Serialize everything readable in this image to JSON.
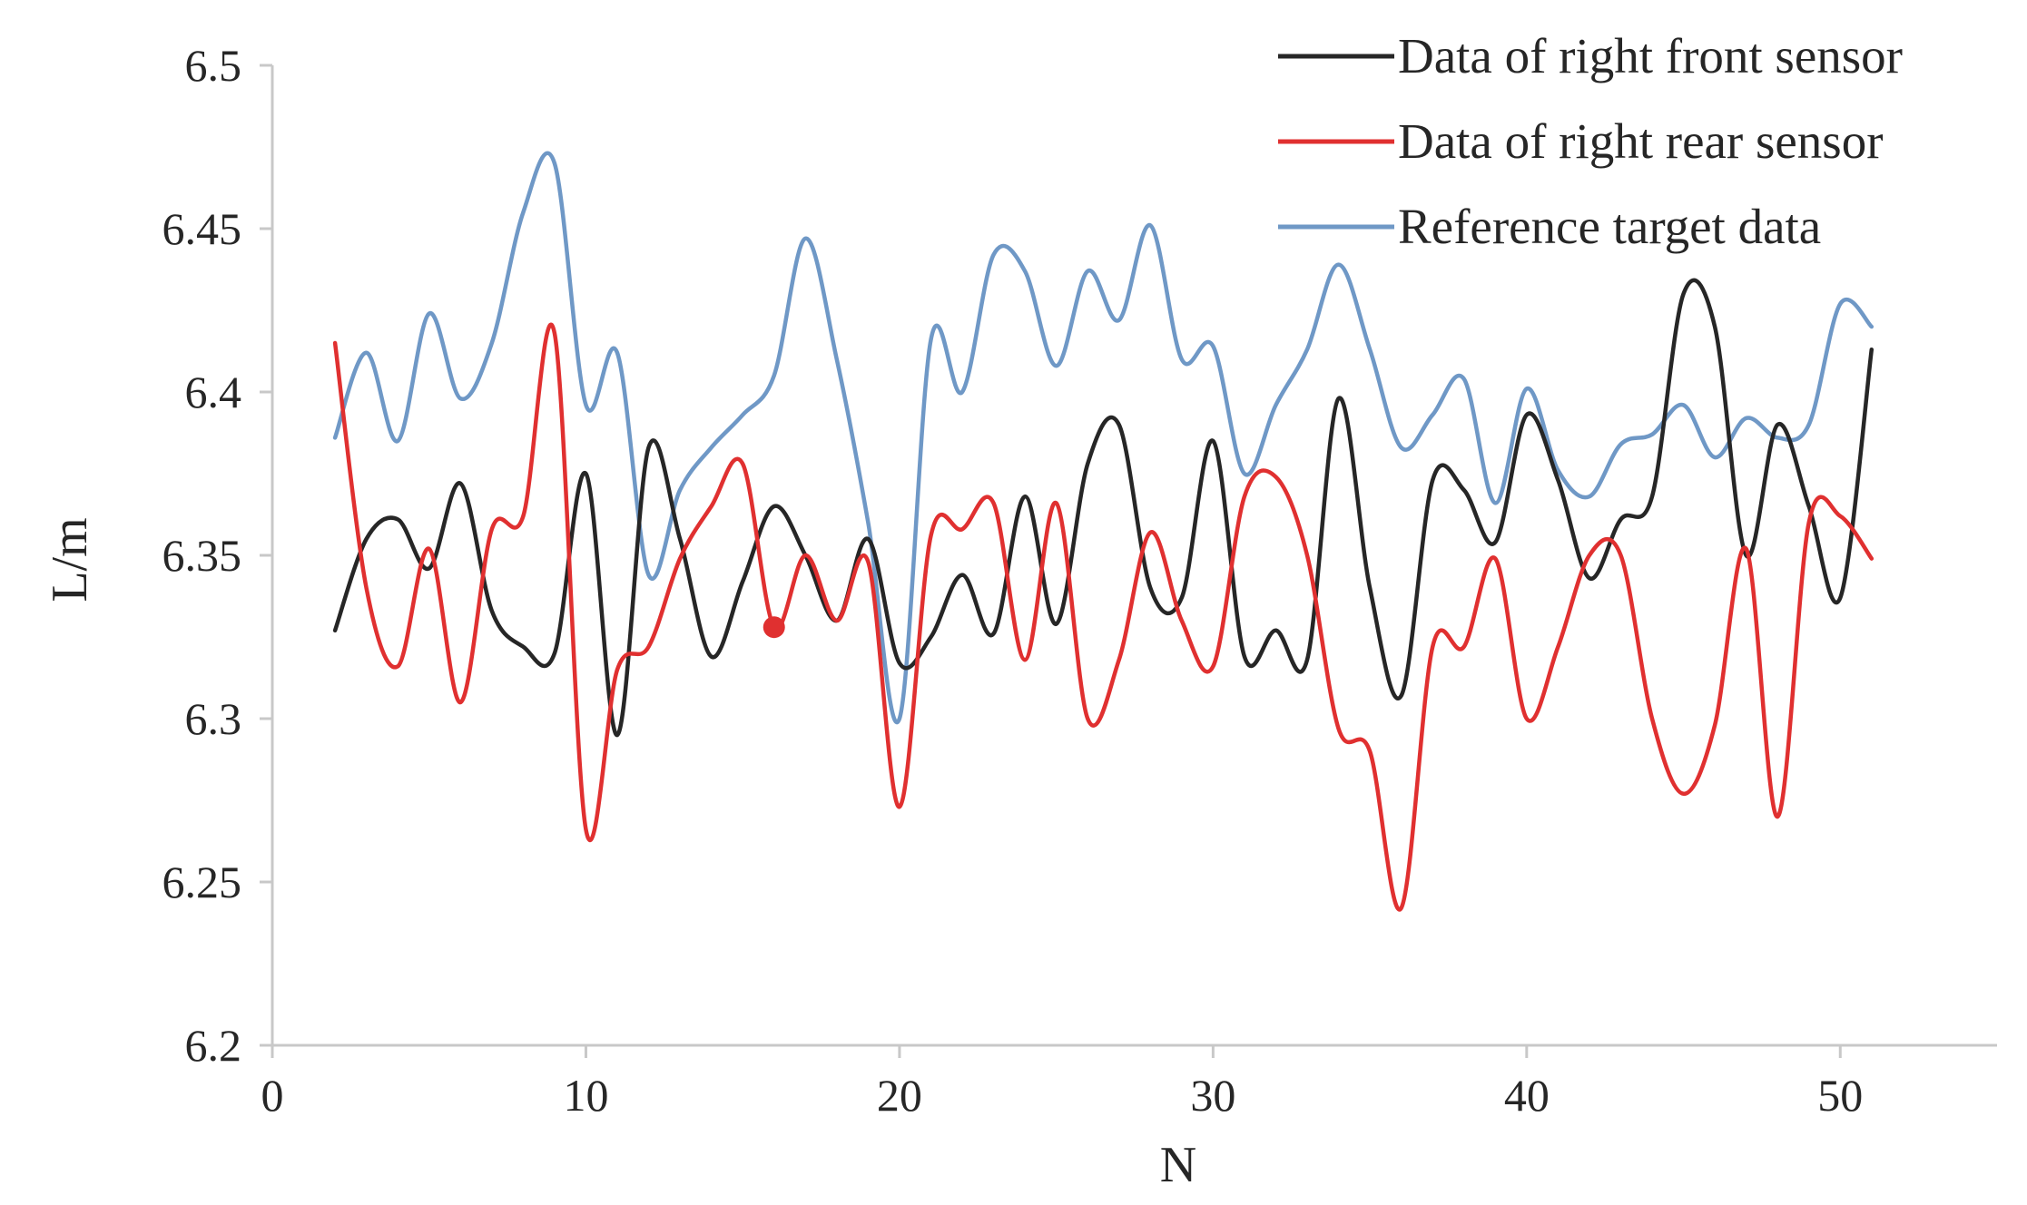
{
  "chart_data": {
    "type": "line",
    "title": "",
    "xlabel": "N",
    "ylabel": "L/m",
    "xlim": [
      0,
      55
    ],
    "ylim": [
      6.2,
      6.5
    ],
    "xticks": [
      0,
      10,
      20,
      30,
      40,
      50
    ],
    "xtick_labels": [
      "0",
      "10",
      "20",
      "30",
      "40",
      "50"
    ],
    "yticks": [
      6.2,
      6.25,
      6.3,
      6.35,
      6.4,
      6.45,
      6.5
    ],
    "ytick_labels": [
      "6.2",
      "6.25",
      "6.3",
      "6.35",
      "6.4",
      "6.45",
      "6.5"
    ],
    "grid": false,
    "legend_position": "top-right",
    "x": [
      2,
      3,
      4,
      5,
      6,
      7,
      8,
      9,
      10,
      11,
      12,
      13,
      14,
      15,
      16,
      17,
      18,
      19,
      20,
      21,
      22,
      23,
      24,
      25,
      26,
      27,
      28,
      29,
      30,
      31,
      32,
      33,
      34,
      35,
      36,
      37,
      38,
      39,
      40,
      41,
      42,
      43,
      44,
      45,
      46,
      47,
      48,
      49,
      50,
      51
    ],
    "series": [
      {
        "name": "Data of right front sensor",
        "color": "#262626",
        "values": [
          6.327,
          6.355,
          6.361,
          6.346,
          6.372,
          6.333,
          6.322,
          6.32,
          6.375,
          6.295,
          6.383,
          6.355,
          6.319,
          6.342,
          6.365,
          6.35,
          6.33,
          6.355,
          6.317,
          6.325,
          6.344,
          6.326,
          6.368,
          6.329,
          6.378,
          6.39,
          6.34,
          6.337,
          6.385,
          6.319,
          6.327,
          6.318,
          6.398,
          6.34,
          6.307,
          6.373,
          6.37,
          6.354,
          6.393,
          6.373,
          6.343,
          6.361,
          6.368,
          6.43,
          6.42,
          6.35,
          6.39,
          6.365,
          6.337,
          6.413
        ]
      },
      {
        "name": "Data of right rear sensor",
        "color": "#e03030",
        "values": [
          6.415,
          6.34,
          6.316,
          6.352,
          6.305,
          6.358,
          6.362,
          6.418,
          6.266,
          6.315,
          6.322,
          6.349,
          6.365,
          6.378,
          6.328,
          6.35,
          6.33,
          6.348,
          6.273,
          6.356,
          6.358,
          6.366,
          6.318,
          6.366,
          6.3,
          6.318,
          6.357,
          6.33,
          6.316,
          6.368,
          6.374,
          6.35,
          6.297,
          6.29,
          6.242,
          6.322,
          6.322,
          6.349,
          6.3,
          6.322,
          6.35,
          6.35,
          6.3,
          6.277,
          6.298,
          6.352,
          6.27,
          6.36,
          6.362,
          6.349
        ]
      },
      {
        "name": "Reference target data",
        "color": "#6f98c6",
        "values": [
          6.386,
          6.412,
          6.385,
          6.424,
          6.398,
          6.415,
          6.455,
          6.47,
          6.396,
          6.412,
          6.344,
          6.37,
          6.383,
          6.393,
          6.405,
          6.447,
          6.41,
          6.36,
          6.3,
          6.416,
          6.4,
          6.442,
          6.437,
          6.408,
          6.437,
          6.422,
          6.451,
          6.41,
          6.414,
          6.375,
          6.396,
          6.413,
          6.439,
          6.413,
          6.383,
          6.393,
          6.404,
          6.366,
          6.401,
          6.376,
          6.368,
          6.384,
          6.387,
          6.396,
          6.38,
          6.392,
          6.386,
          6.39,
          6.427,
          6.42
        ]
      }
    ],
    "annotations": [
      {
        "series": "Data of right rear sensor",
        "x": 16,
        "y": 6.328,
        "kind": "marker"
      }
    ]
  }
}
